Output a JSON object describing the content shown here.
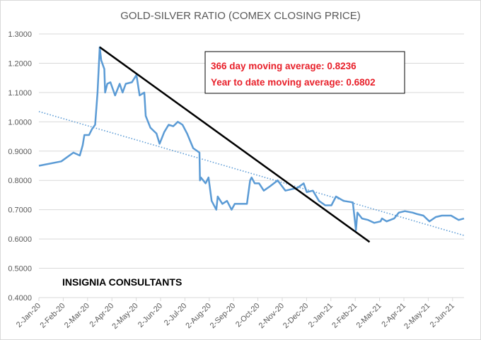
{
  "chart_data": {
    "type": "line",
    "title": "GOLD-SILVER RATIO (COMEX CLOSING PRICE)",
    "xlabel": "",
    "ylabel": "",
    "ylim": [
      0.4,
      1.3
    ],
    "yticks": [
      "0.4000",
      "0.5000",
      "0.6000",
      "0.7000",
      "0.8000",
      "0.9000",
      "1.0000",
      "1.1000",
      "1.2000",
      "1.3000"
    ],
    "x_unit": "months since 2-Jan-20",
    "xlim": [
      0,
      17.47
    ],
    "xticks": [
      "2-Jan-20",
      "2-Feb-20",
      "2-Mar-20",
      "2-Apr-20",
      "2-May-20",
      "2-Jun-20",
      "2-Jul-20",
      "2-Aug-20",
      "2-Sep-20",
      "2-Oct-20",
      "2-Nov-20",
      "2-Dec-20",
      "2-Jan-21",
      "2-Feb-21",
      "2-Mar-21",
      "2-Apr-21",
      "2-May-21",
      "2-Jun-21"
    ],
    "grid": true,
    "series": [
      {
        "name": "Gold-Silver Ratio",
        "color": "#5b9bd5",
        "x": [
          0,
          0.92,
          1.42,
          1.68,
          1.8,
          1.87,
          2.06,
          2.18,
          2.31,
          2.41,
          2.5,
          2.56,
          2.69,
          2.72,
          2.81,
          2.94,
          3.13,
          3.32,
          3.44,
          3.57,
          3.82,
          4.01,
          4.14,
          4.33,
          4.39,
          4.58,
          4.83,
          4.96,
          5.15,
          5.33,
          5.52,
          5.71,
          5.9,
          6.09,
          6.34,
          6.6,
          6.62,
          6.66,
          6.85,
          6.97,
          7.1,
          7.29,
          7.35,
          7.54,
          7.73,
          7.92,
          8.05,
          8.36,
          8.55,
          8.68,
          8.74,
          8.87,
          9.05,
          9.24,
          9.5,
          9.81,
          10.13,
          10.38,
          10.63,
          10.88,
          11.01,
          11.26,
          11.51,
          11.77,
          12.02,
          12.21,
          12.52,
          12.9,
          13.03,
          13.09,
          13.28,
          13.53,
          13.78,
          14.04,
          14.1,
          14.29,
          14.6,
          14.79,
          15.04,
          15.36,
          15.55,
          15.8,
          16.05,
          16.31,
          16.56,
          16.94,
          17.25,
          17.47
        ],
        "y": [
          0.85,
          0.865,
          0.895,
          0.885,
          0.92,
          0.955,
          0.955,
          0.975,
          0.99,
          1.1,
          1.255,
          1.21,
          1.18,
          1.1,
          1.13,
          1.135,
          1.09,
          1.13,
          1.1,
          1.13,
          1.135,
          1.16,
          1.09,
          1.1,
          1.02,
          0.98,
          0.96,
          0.925,
          0.965,
          0.99,
          0.985,
          1.0,
          0.99,
          0.96,
          0.91,
          0.895,
          0.8,
          0.81,
          0.79,
          0.81,
          0.73,
          0.7,
          0.745,
          0.72,
          0.73,
          0.7,
          0.72,
          0.72,
          0.72,
          0.8,
          0.81,
          0.79,
          0.79,
          0.765,
          0.78,
          0.8,
          0.765,
          0.77,
          0.775,
          0.79,
          0.76,
          0.765,
          0.73,
          0.715,
          0.715,
          0.745,
          0.73,
          0.725,
          0.63,
          0.69,
          0.67,
          0.665,
          0.655,
          0.66,
          0.67,
          0.66,
          0.67,
          0.69,
          0.695,
          0.69,
          0.685,
          0.68,
          0.66,
          0.675,
          0.68,
          0.68,
          0.665,
          0.67
        ]
      },
      {
        "name": "Linear trend (dotted)",
        "color": "#5b9bd5",
        "x": [
          0,
          17.47
        ],
        "y": [
          1.035,
          0.612
        ]
      },
      {
        "name": "Downtrend line",
        "color": "#000000",
        "x": [
          2.5,
          13.59
        ],
        "y": [
          1.255,
          0.59
        ]
      }
    ],
    "annotations": {
      "moving_avg_366": "366 day moving average: 0.8236",
      "moving_avg_ytd": "Year to date moving average: 0.6802",
      "brand": "INSIGNIA CONSULTANTS"
    }
  }
}
